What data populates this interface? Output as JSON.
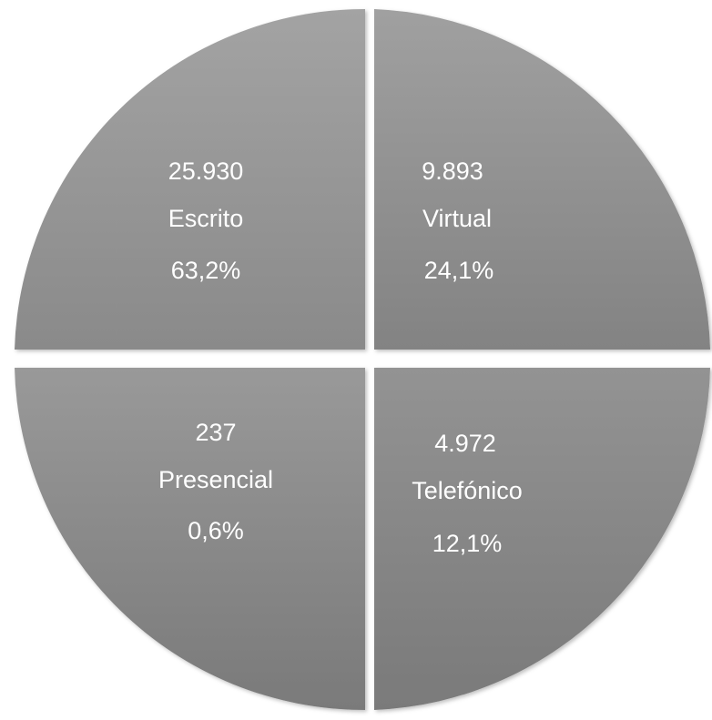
{
  "chart_data": {
    "type": "pie",
    "slices": [
      {
        "label": "Escrito",
        "value": "25.930",
        "percent": "63,2%"
      },
      {
        "label": "Virtual",
        "value": "9.893",
        "percent": "24,1%"
      },
      {
        "label": "Telefónico",
        "value": "4.972",
        "percent": "12,1%"
      },
      {
        "label": "Presencial",
        "value": "237",
        "percent": "0,6%"
      }
    ],
    "title": "",
    "legend": "none",
    "colors": {
      "fill_light": "#a6a6a6",
      "fill_dark": "#7a7a7a",
      "text": "#ffffff"
    }
  }
}
